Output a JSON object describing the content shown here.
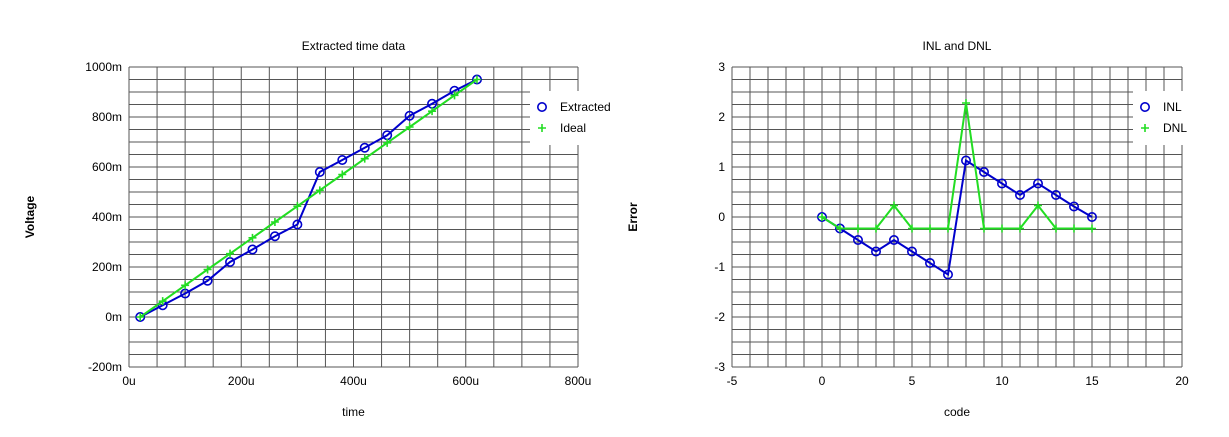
{
  "chart_data": [
    {
      "type": "line",
      "title": "Extracted time data",
      "xlabel": "time",
      "ylabel": "Voltage",
      "xlim": [
        0,
        0.0008
      ],
      "ylim": [
        -0.2,
        1.0
      ],
      "x_tick_labels": [
        "0u",
        "200u",
        "400u",
        "600u",
        "800u"
      ],
      "y_tick_labels": [
        "-200m",
        "0m",
        "200m",
        "400m",
        "600m",
        "800m",
        "1000m"
      ],
      "x_tick_values": [
        0,
        0.0002,
        0.0004,
        0.0006,
        0.0008
      ],
      "y_tick_values": [
        -0.2,
        0,
        0.2,
        0.4,
        0.6,
        0.8,
        1.0
      ],
      "grid": true,
      "legend_position": "top-right",
      "series": [
        {
          "name": "Extracted",
          "color": "#0000cc",
          "marker": "circle",
          "x": [
            2e-05,
            6e-05,
            0.0001,
            0.00014,
            0.00018,
            0.00022,
            0.00026,
            0.0003,
            0.00034,
            0.00038,
            0.00042,
            0.00046,
            0.0005,
            0.00054,
            0.00058,
            0.00062
          ],
          "y": [
            0.0,
            0.047,
            0.094,
            0.145,
            0.22,
            0.27,
            0.323,
            0.37,
            0.58,
            0.628,
            0.677,
            0.727,
            0.805,
            0.853,
            0.905,
            0.95
          ]
        },
        {
          "name": "Ideal",
          "color": "#22dd22",
          "marker": "plus",
          "x": [
            2e-05,
            6e-05,
            0.0001,
            0.00014,
            0.00018,
            0.00022,
            0.00026,
            0.0003,
            0.00034,
            0.00038,
            0.00042,
            0.00046,
            0.0005,
            0.00054,
            0.00058,
            0.00062
          ],
          "y": [
            0.0,
            0.0633,
            0.1267,
            0.19,
            0.2533,
            0.3167,
            0.38,
            0.4433,
            0.5067,
            0.57,
            0.6333,
            0.6967,
            0.76,
            0.8233,
            0.8867,
            0.95
          ]
        }
      ]
    },
    {
      "type": "line",
      "title": "INL and DNL",
      "xlabel": "code",
      "ylabel": "Error",
      "xlim": [
        -5,
        20
      ],
      "ylim": [
        -3,
        3
      ],
      "x_tick_labels": [
        "-5",
        "0",
        "5",
        "10",
        "15",
        "20"
      ],
      "y_tick_labels": [
        "-3",
        "-2",
        "-1",
        "0",
        "1",
        "2",
        "3"
      ],
      "x_tick_values": [
        -5,
        0,
        5,
        10,
        15,
        20
      ],
      "y_tick_values": [
        -3,
        -2,
        -1,
        0,
        1,
        2,
        3
      ],
      "grid": true,
      "legend_position": "top-right",
      "series": [
        {
          "name": "INL",
          "color": "#0000cc",
          "marker": "circle",
          "x": [
            0,
            1,
            2,
            3,
            4,
            5,
            6,
            7,
            8,
            9,
            10,
            11,
            12,
            13,
            14,
            15
          ],
          "y": [
            0.0,
            -0.23,
            -0.46,
            -0.69,
            -0.46,
            -0.69,
            -0.92,
            -1.15,
            1.13,
            0.9,
            0.67,
            0.44,
            0.67,
            0.44,
            0.21,
            0.0
          ]
        },
        {
          "name": "DNL",
          "color": "#22dd22",
          "marker": "plus",
          "x": [
            0,
            1,
            2,
            3,
            4,
            5,
            6,
            7,
            8,
            9,
            10,
            11,
            12,
            13,
            14,
            15
          ],
          "y": [
            0.0,
            -0.23,
            -0.23,
            -0.23,
            0.23,
            -0.23,
            -0.23,
            -0.23,
            2.28,
            -0.23,
            -0.23,
            -0.23,
            0.23,
            -0.23,
            -0.23,
            -0.23
          ]
        }
      ]
    }
  ]
}
